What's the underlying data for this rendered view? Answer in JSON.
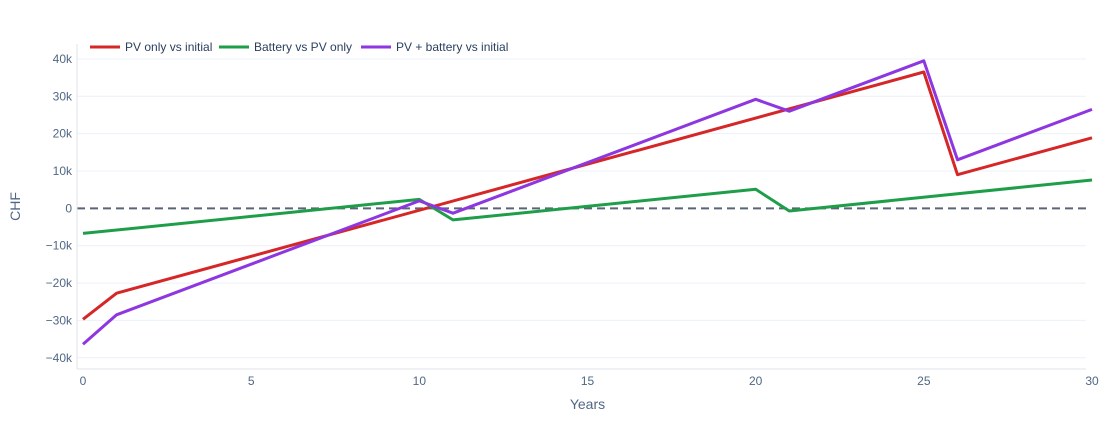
{
  "chart_data": {
    "type": "line",
    "xlabel": "Years",
    "ylabel": "CHF",
    "xlim": [
      0,
      30
    ],
    "ylim": [
      -43000,
      44000
    ],
    "x_ticks": [
      0,
      5,
      10,
      15,
      20,
      25,
      30
    ],
    "x_tick_labels": [
      "0",
      "5",
      "10",
      "15",
      "20",
      "25",
      "30"
    ],
    "y_ticks": [
      -40000,
      -30000,
      -20000,
      -10000,
      0,
      10000,
      20000,
      30000,
      40000
    ],
    "y_tick_labels": [
      "−40k",
      "−30k",
      "−20k",
      "−10k",
      "0",
      "10k",
      "20k",
      "30k",
      "40k"
    ],
    "grid": true,
    "legend_position": "top-left",
    "zero_line": {
      "y": 0,
      "style": "dashed",
      "color": "#5a6478"
    },
    "series": [
      {
        "name": "PV only vs initial",
        "color": "#d62728",
        "points": [
          [
            0,
            -29700
          ],
          [
            1,
            -22700
          ],
          [
            25,
            36500
          ],
          [
            26,
            9000
          ],
          [
            30,
            18900
          ]
        ]
      },
      {
        "name": "Battery vs PV only",
        "color": "#1f9e4a",
        "points": [
          [
            0,
            -6700
          ],
          [
            10,
            2400
          ],
          [
            11,
            -3100
          ],
          [
            20,
            5100
          ],
          [
            21,
            -700
          ],
          [
            30,
            7600
          ]
        ]
      },
      {
        "name": "PV + battery vs initial",
        "color": "#8e36e0",
        "points": [
          [
            0,
            -36400
          ],
          [
            1,
            -28500
          ],
          [
            10,
            2000
          ],
          [
            11,
            -1300
          ],
          [
            20,
            29200
          ],
          [
            21,
            26000
          ],
          [
            25,
            39500
          ],
          [
            26,
            13000
          ],
          [
            30,
            26500
          ]
        ]
      }
    ]
  }
}
